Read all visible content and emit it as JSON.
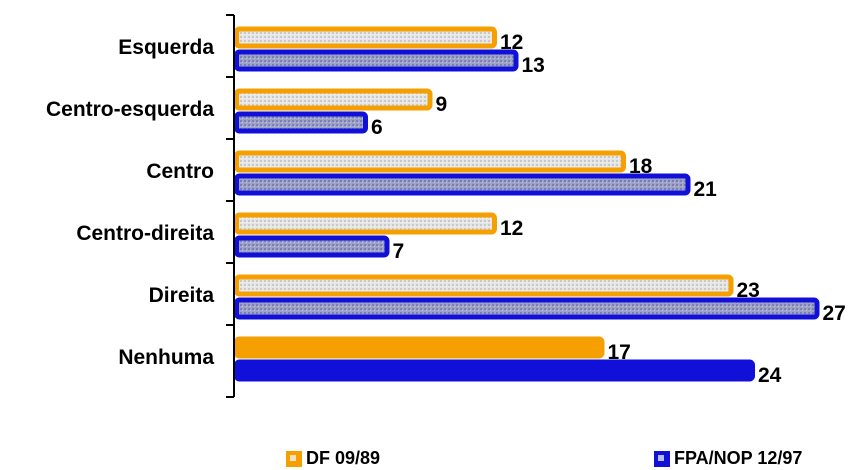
{
  "chart_data": {
    "type": "bar",
    "orientation": "horizontal",
    "categories": [
      "Esquerda",
      "Centro-esquerda",
      "Centro",
      "Centro-direita",
      "Direita",
      "Nenhuma"
    ],
    "series": [
      {
        "name": "DF 09/89",
        "values": [
          12,
          9,
          18,
          12,
          23,
          17
        ],
        "color": "#f5a000"
      },
      {
        "name": "FPA/NOP 12/97",
        "values": [
          13,
          6,
          21,
          7,
          27,
          24
        ],
        "color": "#1010d8"
      }
    ],
    "xlim": [
      0,
      27
    ],
    "grid": false,
    "legend_position": "bottom"
  }
}
